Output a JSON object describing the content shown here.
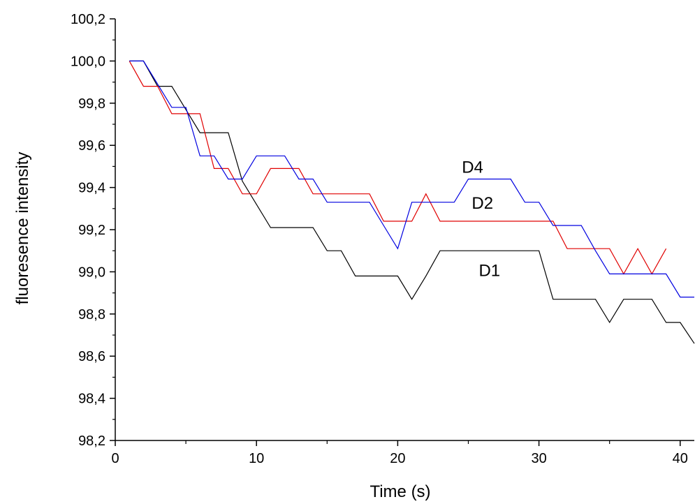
{
  "chart_data": {
    "type": "line",
    "xlabel": "Time (s)",
    "ylabel": "fluoresence intensity",
    "xlim": [
      0,
      41
    ],
    "ylim": [
      98.2,
      100.2
    ],
    "x_ticks": [
      0,
      10,
      20,
      30,
      40
    ],
    "x_tick_labels": [
      "0",
      "10",
      "20",
      "30",
      "40"
    ],
    "y_ticks": [
      98.2,
      98.4,
      98.6,
      98.8,
      99.0,
      99.2,
      99.4,
      99.6,
      99.8,
      100.0,
      100.2
    ],
    "y_tick_labels": [
      "98,2",
      "98,4",
      "98,6",
      "98,8",
      "99,0",
      "99,2",
      "99,4",
      "99,6",
      "99,8",
      "100,0",
      "100,2"
    ],
    "grid": false,
    "legend": "none",
    "series": [
      {
        "name": "D1",
        "color": "#000000",
        "label_at": [
          26.5,
          98.98
        ],
        "points": [
          [
            1,
            100.0
          ],
          [
            2,
            100.0
          ],
          [
            3,
            99.88
          ],
          [
            4,
            99.88
          ],
          [
            5,
            99.77
          ],
          [
            6,
            99.66
          ],
          [
            7,
            99.66
          ],
          [
            8,
            99.66
          ],
          [
            9,
            99.43
          ],
          [
            10,
            99.32
          ],
          [
            11,
            99.21
          ],
          [
            12,
            99.21
          ],
          [
            13,
            99.21
          ],
          [
            14,
            99.21
          ],
          [
            15,
            99.1
          ],
          [
            16,
            99.1
          ],
          [
            17,
            98.98
          ],
          [
            18,
            98.98
          ],
          [
            19,
            98.98
          ],
          [
            20,
            98.98
          ],
          [
            21,
            98.87
          ],
          [
            22,
            98.98
          ],
          [
            23,
            99.1
          ],
          [
            24,
            99.1
          ],
          [
            25,
            99.1
          ],
          [
            26,
            99.1
          ],
          [
            27,
            99.1
          ],
          [
            28,
            99.1
          ],
          [
            29,
            99.1
          ],
          [
            30,
            99.1
          ],
          [
            31,
            98.87
          ],
          [
            32,
            98.87
          ],
          [
            33,
            98.87
          ],
          [
            34,
            98.87
          ],
          [
            35,
            98.76
          ],
          [
            36,
            98.87
          ],
          [
            37,
            98.87
          ],
          [
            38,
            98.87
          ],
          [
            39,
            98.76
          ],
          [
            40,
            98.76
          ],
          [
            41,
            98.66
          ]
        ]
      },
      {
        "name": "D2",
        "color": "#e00000",
        "label_at": [
          26.0,
          99.3
        ],
        "points": [
          [
            1,
            100.0
          ],
          [
            2,
            99.88
          ],
          [
            3,
            99.88
          ],
          [
            4,
            99.75
          ],
          [
            5,
            99.75
          ],
          [
            6,
            99.75
          ],
          [
            7,
            99.49
          ],
          [
            8,
            99.49
          ],
          [
            9,
            99.37
          ],
          [
            10,
            99.37
          ],
          [
            11,
            99.49
          ],
          [
            12,
            99.49
          ],
          [
            13,
            99.49
          ],
          [
            14,
            99.37
          ],
          [
            15,
            99.37
          ],
          [
            16,
            99.37
          ],
          [
            17,
            99.37
          ],
          [
            18,
            99.37
          ],
          [
            19,
            99.24
          ],
          [
            20,
            99.24
          ],
          [
            21,
            99.24
          ],
          [
            22,
            99.37
          ],
          [
            23,
            99.24
          ],
          [
            24,
            99.24
          ],
          [
            25,
            99.24
          ],
          [
            26,
            99.24
          ],
          [
            27,
            99.24
          ],
          [
            28,
            99.24
          ],
          [
            29,
            99.24
          ],
          [
            30,
            99.24
          ],
          [
            31,
            99.24
          ],
          [
            32,
            99.11
          ],
          [
            33,
            99.11
          ],
          [
            34,
            99.11
          ],
          [
            35,
            99.11
          ],
          [
            36,
            98.99
          ],
          [
            37,
            99.11
          ],
          [
            38,
            98.99
          ],
          [
            39,
            99.11
          ]
        ]
      },
      {
        "name": "D4",
        "color": "#0000e0",
        "label_at": [
          25.3,
          99.47
        ],
        "points": [
          [
            1,
            100.0
          ],
          [
            2,
            100.0
          ],
          [
            3,
            99.89
          ],
          [
            4,
            99.78
          ],
          [
            5,
            99.78
          ],
          [
            6,
            99.55
          ],
          [
            7,
            99.55
          ],
          [
            8,
            99.44
          ],
          [
            9,
            99.44
          ],
          [
            10,
            99.55
          ],
          [
            11,
            99.55
          ],
          [
            12,
            99.55
          ],
          [
            13,
            99.44
          ],
          [
            14,
            99.44
          ],
          [
            15,
            99.33
          ],
          [
            16,
            99.33
          ],
          [
            17,
            99.33
          ],
          [
            18,
            99.33
          ],
          [
            19,
            99.22
          ],
          [
            20,
            99.11
          ],
          [
            21,
            99.33
          ],
          [
            22,
            99.33
          ],
          [
            23,
            99.33
          ],
          [
            24,
            99.33
          ],
          [
            25,
            99.44
          ],
          [
            26,
            99.44
          ],
          [
            27,
            99.44
          ],
          [
            28,
            99.44
          ],
          [
            29,
            99.33
          ],
          [
            30,
            99.33
          ],
          [
            31,
            99.22
          ],
          [
            32,
            99.22
          ],
          [
            33,
            99.22
          ],
          [
            34,
            99.1
          ],
          [
            35,
            98.99
          ],
          [
            36,
            98.99
          ],
          [
            37,
            98.99
          ],
          [
            38,
            98.99
          ],
          [
            39,
            98.99
          ],
          [
            40,
            98.88
          ],
          [
            41,
            98.88
          ]
        ]
      }
    ]
  }
}
